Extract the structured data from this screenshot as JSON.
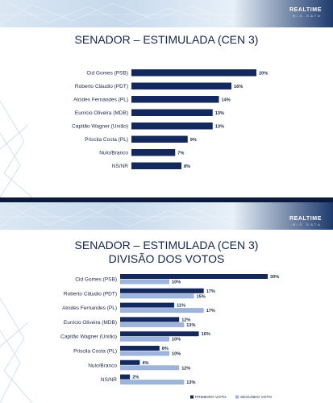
{
  "brand": {
    "name": "REALTIME",
    "sub": "BIG DATA"
  },
  "colors": {
    "primary": "#13295e",
    "secondary": "#9db4dd",
    "background": "#0b1a3c"
  },
  "slide1": {
    "title": "SENADOR – ESTIMULADA (CEN 3)"
  },
  "slide2": {
    "title_line1": "SENADOR – ESTIMULADA (CEN 3)",
    "title_line2": "DIVISÃO DOS VOTOS"
  },
  "chart_data": [
    {
      "type": "bar",
      "orientation": "horizontal",
      "categories": [
        "Cid Gomes (PSB)",
        "Roberto Cláudio (PDT)",
        "Alcides Fernandes (PL)",
        "Eunício Oliveira (MDB)",
        "Capitão Wagner (União)",
        "Priscila Costa (PL)",
        "Nulo/Branco",
        "NS/NR"
      ],
      "series": [
        {
          "values": [
            20,
            16,
            14,
            13,
            13,
            9,
            7,
            8
          ]
        }
      ],
      "value_labels": [
        "20%",
        "16%",
        "14%",
        "13%",
        "13%",
        "9%",
        "7%",
        "8%"
      ]
    },
    {
      "type": "bar",
      "orientation": "horizontal",
      "categories": [
        "Cid Gomes (PSB)",
        "Roberto Cláudio (PDT)",
        "Alcides Fernandes (PL)",
        "Eunício Oliveira (MDB)",
        "Capitão Wagner (União)",
        "Priscila Costa (PL)",
        "Nulo/Branco",
        "NS/NR"
      ],
      "series": [
        {
          "name": "PRIMEIRO VOTO",
          "values": [
            30,
            17,
            11,
            12,
            16,
            8,
            4,
            2
          ],
          "value_labels": [
            "30%",
            "17%",
            "11%",
            "12%",
            "16%",
            "8%",
            "4%",
            "2%"
          ]
        },
        {
          "name": "SEGUNDO VOTO",
          "values": [
            10,
            15,
            17,
            13,
            10,
            10,
            12,
            13
          ],
          "value_labels": [
            "10%",
            "15%",
            "17%",
            "13%",
            "10%",
            "10%",
            "12%",
            "13%"
          ]
        }
      ],
      "legend": "bottom-right"
    }
  ]
}
